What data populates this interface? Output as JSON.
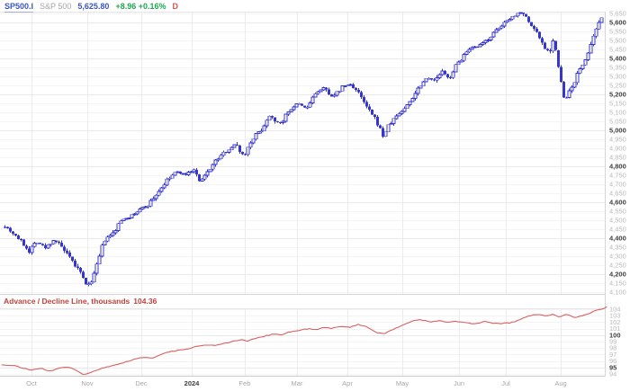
{
  "header": {
    "symbol": "SP500.I",
    "name": "S&P 500",
    "price": "5,625.80",
    "change": "+8.96 +0.16%",
    "interval": "D"
  },
  "lower_header": {
    "label": "Advance / Decline Line, thousands",
    "value": "104.36"
  },
  "colors": {
    "candle_blue": "#3535cf",
    "candle_up_fill": "#ffffff",
    "ad_line_red": "#dd5f5f",
    "indicator_title_red": "#c0433d",
    "header_blue": "#3c55c0",
    "header_gray": "#a6a6a6",
    "change_green": "#21a453",
    "interval_red": "#d9544f",
    "axis_minor_gray": "#b9b9b9",
    "axis_major_gray": "#3f3f3f",
    "grid_minor": "#f4f4f4",
    "grid_major": "#e9e9e9",
    "panel_border": "#d6d6d6"
  },
  "chart_data": [
    {
      "type": "candlestick",
      "title": "SP500.I S&P 500 Daily",
      "last_price": 5625.8,
      "ylim": [
        4090,
        5660
      ],
      "yticks": {
        "min": 4100,
        "max": 5650,
        "step": 50,
        "bold_every": 200
      },
      "grid": true,
      "x_labels": [
        {
          "label": "Oct",
          "x": 35
        },
        {
          "label": "Nov",
          "x": 97
        },
        {
          "label": "Dec",
          "x": 157
        },
        {
          "label": "2024",
          "x": 213,
          "bold": true
        },
        {
          "label": "Feb",
          "x": 272
        },
        {
          "label": "Mar",
          "x": 330
        },
        {
          "label": "Apr",
          "x": 386
        },
        {
          "label": "May",
          "x": 447
        },
        {
          "label": "Jun",
          "x": 510
        },
        {
          "label": "Jul",
          "x": 562
        },
        {
          "label": "Aug",
          "x": 623
        }
      ],
      "x_range": [
        5,
        668
      ],
      "bar_step": 3,
      "anchors": [
        [
          5,
          4470
        ],
        [
          20,
          4400
        ],
        [
          32,
          4330
        ],
        [
          40,
          4385
        ],
        [
          50,
          4345
        ],
        [
          60,
          4395
        ],
        [
          68,
          4350
        ],
        [
          78,
          4280
        ],
        [
          88,
          4215
        ],
        [
          97,
          4125
        ],
        [
          105,
          4210
        ],
        [
          115,
          4385
        ],
        [
          125,
          4425
        ],
        [
          135,
          4505
        ],
        [
          145,
          4520
        ],
        [
          155,
          4560
        ],
        [
          165,
          4590
        ],
        [
          175,
          4655
        ],
        [
          185,
          4720
        ],
        [
          195,
          4770
        ],
        [
          205,
          4755
        ],
        [
          215,
          4780
        ],
        [
          222,
          4705
        ],
        [
          232,
          4785
        ],
        [
          242,
          4845
        ],
        [
          252,
          4890
        ],
        [
          262,
          4925
        ],
        [
          270,
          4855
        ],
        [
          280,
          4955
        ],
        [
          290,
          5005
        ],
        [
          300,
          5090
        ],
        [
          310,
          5030
        ],
        [
          320,
          5105
        ],
        [
          330,
          5150
        ],
        [
          340,
          5120
        ],
        [
          350,
          5205
        ],
        [
          360,
          5235
        ],
        [
          370,
          5180
        ],
        [
          380,
          5245
        ],
        [
          390,
          5255
        ],
        [
          398,
          5205
        ],
        [
          408,
          5120
        ],
        [
          418,
          5050
        ],
        [
          425,
          4970
        ],
        [
          432,
          5030
        ],
        [
          440,
          5080
        ],
        [
          450,
          5125
        ],
        [
          458,
          5185
        ],
        [
          466,
          5250
        ],
        [
          475,
          5300
        ],
        [
          483,
          5270
        ],
        [
          490,
          5330
        ],
        [
          498,
          5285
        ],
        [
          505,
          5350
        ],
        [
          515,
          5420
        ],
        [
          525,
          5460
        ],
        [
          533,
          5470
        ],
        [
          540,
          5500
        ],
        [
          548,
          5540
        ],
        [
          555,
          5570
        ],
        [
          563,
          5615
        ],
        [
          572,
          5640
        ],
        [
          580,
          5665
        ],
        [
          588,
          5590
        ],
        [
          595,
          5555
        ],
        [
          600,
          5505
        ],
        [
          605,
          5460
        ],
        [
          610,
          5435
        ],
        [
          615,
          5515
        ],
        [
          620,
          5345
        ],
        [
          627,
          5155
        ],
        [
          630,
          5190
        ],
        [
          635,
          5240
        ],
        [
          640,
          5300
        ],
        [
          645,
          5345
        ],
        [
          650,
          5400
        ],
        [
          655,
          5450
        ],
        [
          658,
          5500
        ],
        [
          662,
          5555
        ],
        [
          668,
          5625.8
        ]
      ]
    },
    {
      "type": "line",
      "title": "Advance / Decline Line, thousands",
      "last_value": 104.36,
      "ylim": [
        93.8,
        104.4
      ],
      "yticks": {
        "min": 94,
        "max": 104,
        "step": 1,
        "bold": [
          95,
          100
        ]
      },
      "grid": true,
      "x_labels_shared": true,
      "anchors": [
        [
          2,
          95.4
        ],
        [
          15,
          95.3
        ],
        [
          25,
          94.9
        ],
        [
          35,
          94.6
        ],
        [
          45,
          94.9
        ],
        [
          55,
          94.4
        ],
        [
          65,
          94.9
        ],
        [
          75,
          95.1
        ],
        [
          85,
          94.5
        ],
        [
          93,
          93.9
        ],
        [
          100,
          94.2
        ],
        [
          110,
          94.7
        ],
        [
          120,
          95.1
        ],
        [
          130,
          95.4
        ],
        [
          140,
          95.9
        ],
        [
          150,
          96.3
        ],
        [
          160,
          96.6
        ],
        [
          168,
          96.4
        ],
        [
          178,
          97.0
        ],
        [
          188,
          97.4
        ],
        [
          198,
          97.6
        ],
        [
          208,
          97.9
        ],
        [
          218,
          98.2
        ],
        [
          228,
          98.5
        ],
        [
          238,
          98.4
        ],
        [
          248,
          98.7
        ],
        [
          258,
          99.0
        ],
        [
          268,
          99.3
        ],
        [
          275,
          99.1
        ],
        [
          285,
          99.5
        ],
        [
          295,
          99.9
        ],
        [
          305,
          100.2
        ],
        [
          312,
          100.0
        ],
        [
          322,
          100.5
        ],
        [
          332,
          100.7
        ],
        [
          342,
          101.0
        ],
        [
          352,
          100.8
        ],
        [
          360,
          101.2
        ],
        [
          368,
          101.0
        ],
        [
          378,
          101.4
        ],
        [
          388,
          101.2
        ],
        [
          398,
          101.6
        ],
        [
          408,
          101.3
        ],
        [
          418,
          100.4
        ],
        [
          428,
          100.3
        ],
        [
          438,
          100.9
        ],
        [
          448,
          101.6
        ],
        [
          458,
          102.2
        ],
        [
          468,
          102.4
        ],
        [
          478,
          102.0
        ],
        [
          488,
          102.2
        ],
        [
          498,
          102.0
        ],
        [
          508,
          102.1
        ],
        [
          518,
          101.9
        ],
        [
          528,
          101.7
        ],
        [
          538,
          102.1
        ],
        [
          548,
          101.8
        ],
        [
          558,
          101.8
        ],
        [
          568,
          101.9
        ],
        [
          578,
          102.4
        ],
        [
          588,
          103.0
        ],
        [
          598,
          103.2
        ],
        [
          606,
          102.9
        ],
        [
          614,
          103.2
        ],
        [
          622,
          102.8
        ],
        [
          630,
          103.2
        ],
        [
          638,
          102.7
        ],
        [
          646,
          103.0
        ],
        [
          654,
          103.3
        ],
        [
          662,
          103.8
        ],
        [
          670,
          104.1
        ],
        [
          674,
          104.36
        ]
      ]
    }
  ]
}
